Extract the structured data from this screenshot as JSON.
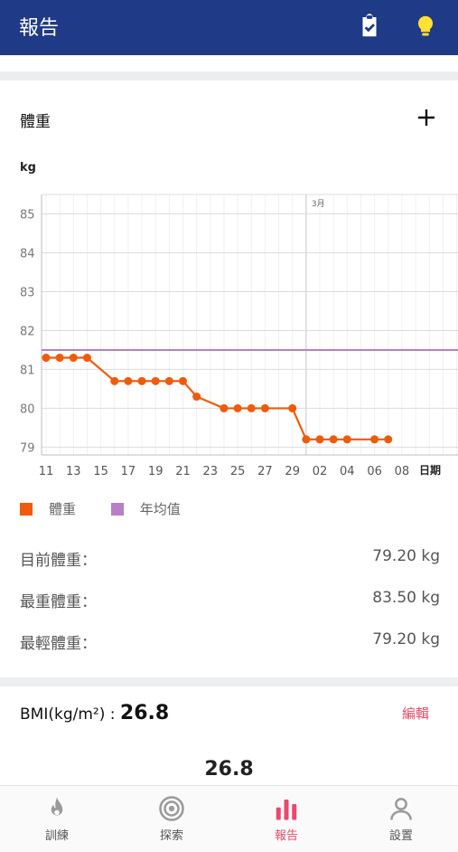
{
  "header": {
    "title": "報告",
    "checklist_icon": "clipboard-check-icon",
    "tip_icon": "lightbulb-icon"
  },
  "weight_card": {
    "title": "體重",
    "add_icon": "plus-icon",
    "unit": "kg",
    "legend": [
      {
        "label": "體重",
        "color": "#f05a0a"
      },
      {
        "label": "年均值",
        "color": "#b77fc6"
      }
    ],
    "stats": [
      {
        "label": "目前體重：",
        "value": "79.20 kg"
      },
      {
        "label": "最重體重：",
        "value": "83.50 kg"
      },
      {
        "label": "最輕體重：",
        "value": "79.20 kg"
      }
    ]
  },
  "chart_data": {
    "type": "line",
    "xlabel": "日期",
    "ylabel": "kg",
    "month_marker": "3月",
    "x_ticks": [
      "11",
      "13",
      "15",
      "17",
      "19",
      "21",
      "23",
      "25",
      "27",
      "29",
      "02",
      "04",
      "06",
      "08"
    ],
    "y_ticks": [
      "79",
      "80",
      "81",
      "82",
      "83",
      "84",
      "85"
    ],
    "ylim": [
      78.8,
      85.5
    ],
    "series": [
      {
        "name": "體重",
        "color": "#f05a0a",
        "x": [
          "Feb 11",
          "Feb 12",
          "Feb 13",
          "Feb 14",
          "Feb 16",
          "Feb 17",
          "Feb 18",
          "Feb 19",
          "Feb 20",
          "Feb 21",
          "Feb 22",
          "Feb 24",
          "Feb 25",
          "Feb 26",
          "Feb 27",
          "Feb 29",
          "Mar 01",
          "Mar 02",
          "Mar 03",
          "Mar 04",
          "Mar 06",
          "Mar 07"
        ],
        "values": [
          81.3,
          81.3,
          81.3,
          81.3,
          80.7,
          80.7,
          80.7,
          80.7,
          80.7,
          80.7,
          80.3,
          80.0,
          80.0,
          80.0,
          80.0,
          80.0,
          79.2,
          79.2,
          79.2,
          79.2,
          79.2,
          79.2
        ]
      },
      {
        "name": "年均值",
        "color": "#b77fc6",
        "values": [
          81.5
        ]
      }
    ]
  },
  "bmi": {
    "label": "BMI(kg/m²) : ",
    "value": "26.8",
    "edit_label": "編輯",
    "big_value": "26.8"
  },
  "nav": [
    {
      "label": "訓練",
      "icon": "flame-icon",
      "active": false
    },
    {
      "label": "探索",
      "icon": "target-icon",
      "active": false
    },
    {
      "label": "報告",
      "icon": "bar-chart-icon",
      "active": true
    },
    {
      "label": "設置",
      "icon": "person-icon",
      "active": false
    }
  ]
}
